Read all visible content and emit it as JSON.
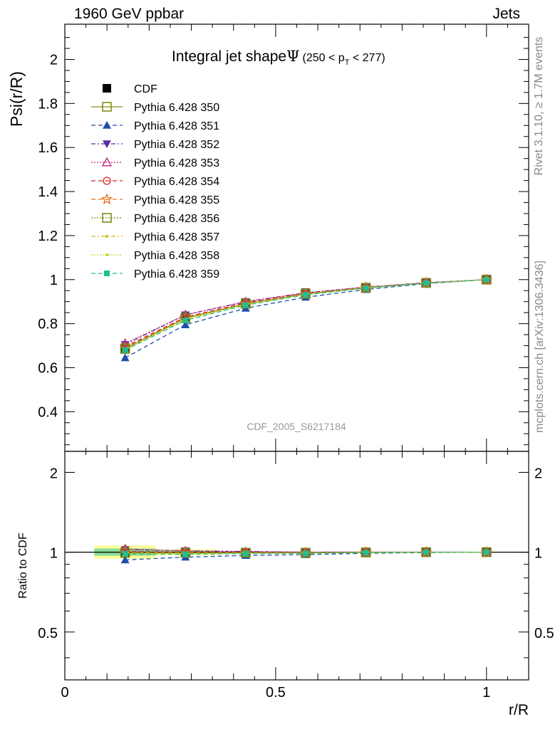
{
  "header": {
    "left": "1960 GeV ppbar",
    "right": "Jets"
  },
  "side_texts": {
    "rivet": "Rivet 3.1.10, ≥ 1.7M events",
    "mcplots": "mcplots.cern.ch [arXiv:1306.3436]"
  },
  "watermark": "CDF_2005_S6217184",
  "chart_data": [
    {
      "type": "line",
      "panel": "main",
      "title": "Integral jet shapeΨ (250 < p_T < 277)",
      "title_main": "Integral jet shape",
      "title_symbol": "Ψ",
      "title_range": "(250 < p",
      "title_sub": "T",
      "title_range_end": " < 277)",
      "ylabel": "Psi(r/R)",
      "xlabel": "r/R",
      "xlim": [
        0,
        1.1
      ],
      "ylim": [
        0.22,
        2.16
      ],
      "y_ticks": [
        0.4,
        0.6,
        0.8,
        1,
        1.2,
        1.4,
        1.6,
        1.8,
        2
      ],
      "y_tick_labels": [
        "0.4",
        "0.6",
        "0.8",
        "1",
        "1.2",
        "1.4",
        "1.6",
        "1.8",
        "2"
      ],
      "x": [
        0.143,
        0.286,
        0.429,
        0.571,
        0.714,
        0.857,
        1.0
      ],
      "legend_position": "top-left",
      "series": [
        {
          "name": "CDF",
          "color": "#000000",
          "marker": "filled-square",
          "dash": "none",
          "values": [
            0.69,
            0.83,
            0.895,
            0.94,
            0.965,
            0.985,
            1.0
          ]
        },
        {
          "name": "Pythia 6.428 350",
          "color": "#8a8a1e",
          "marker": "open-square",
          "dash": "solid",
          "values": [
            0.685,
            0.825,
            0.89,
            0.935,
            0.963,
            0.985,
            1.0
          ]
        },
        {
          "name": "Pythia 6.428 351",
          "color": "#1f4fa8",
          "marker": "filled-triangle-up",
          "dash": "6,4",
          "values": [
            0.645,
            0.795,
            0.87,
            0.92,
            0.955,
            0.982,
            1.0
          ]
        },
        {
          "name": "Pythia 6.428 352",
          "color": "#5b2ca0",
          "marker": "filled-triangle-down",
          "dash": "6,3,2,3",
          "values": [
            0.705,
            0.84,
            0.9,
            0.94,
            0.966,
            0.986,
            1.0
          ]
        },
        {
          "name": "Pythia 6.428 353",
          "color": "#c0257a",
          "marker": "open-triangle-up",
          "dash": "2,2",
          "values": [
            0.71,
            0.84,
            0.9,
            0.94,
            0.966,
            0.986,
            1.0
          ]
        },
        {
          "name": "Pythia 6.428 354",
          "color": "#d42020",
          "marker": "open-circle",
          "dash": "6,4",
          "values": [
            0.695,
            0.83,
            0.895,
            0.937,
            0.964,
            0.985,
            1.0
          ]
        },
        {
          "name": "Pythia 6.428 355",
          "color": "#e8701c",
          "marker": "open-star",
          "dash": "6,4",
          "values": [
            0.69,
            0.827,
            0.892,
            0.936,
            0.964,
            0.985,
            1.0
          ]
        },
        {
          "name": "Pythia 6.428 356",
          "color": "#7a8a1c",
          "marker": "open-square",
          "dash": "2,2",
          "values": [
            0.688,
            0.826,
            0.891,
            0.935,
            0.963,
            0.985,
            1.0
          ]
        },
        {
          "name": "Pythia 6.428 357",
          "color": "#d8b820",
          "marker": "small-dot",
          "dash": "6,3,2,3",
          "values": [
            0.685,
            0.822,
            0.888,
            0.933,
            0.962,
            0.984,
            1.0
          ]
        },
        {
          "name": "Pythia 6.428 358",
          "color": "#b8d820",
          "marker": "small-dot",
          "dash": "2,2",
          "values": [
            0.682,
            0.818,
            0.886,
            0.932,
            0.962,
            0.984,
            1.0
          ]
        },
        {
          "name": "Pythia 6.428 359",
          "color": "#20c090",
          "marker": "filled-square-small",
          "dash": "6,4",
          "values": [
            0.68,
            0.815,
            0.884,
            0.931,
            0.961,
            0.984,
            1.0
          ]
        }
      ]
    },
    {
      "type": "line",
      "panel": "ratio",
      "ylabel": "Ratio to CDF",
      "xlabel": "r/R",
      "xlim": [
        0,
        1.1
      ],
      "ylim": [
        0.33,
        2.4
      ],
      "log_y": true,
      "y_ticks": [
        0.5,
        1,
        2
      ],
      "y_tick_labels": [
        "0.5",
        "1",
        "2"
      ],
      "x_ticks": [
        0,
        0.5,
        1
      ],
      "x_tick_labels": [
        "0",
        "0.5",
        "1"
      ],
      "x": [
        0.143,
        0.286,
        0.429,
        0.571,
        0.714,
        0.857,
        1.0
      ],
      "bands": [
        {
          "x0": 0.07,
          "x1": 0.215,
          "lo": 0.945,
          "hi": 1.06,
          "color": "#ffff99"
        },
        {
          "x0": 0.07,
          "x1": 0.215,
          "lo": 0.97,
          "hi": 1.032,
          "color": "#88dd99"
        },
        {
          "x0": 0.215,
          "x1": 0.36,
          "lo": 0.975,
          "hi": 1.025,
          "color": "#ffff99"
        },
        {
          "x0": 0.215,
          "x1": 0.36,
          "lo": 0.988,
          "hi": 1.012,
          "color": "#88dd99"
        }
      ],
      "series_ratio": [
        [
          1.0,
          1.0,
          1.0,
          1.0,
          1.0,
          1.0,
          1.0
        ],
        [
          0.993,
          0.994,
          0.994,
          0.995,
          0.998,
          1.0,
          1.0
        ],
        [
          0.935,
          0.958,
          0.972,
          0.979,
          0.99,
          0.997,
          1.0
        ],
        [
          1.022,
          1.012,
          1.006,
          1.0,
          1.001,
          1.001,
          1.0
        ],
        [
          1.029,
          1.012,
          1.006,
          1.0,
          1.001,
          1.001,
          1.0
        ],
        [
          1.007,
          1.0,
          1.0,
          0.997,
          0.999,
          1.0,
          1.0
        ],
        [
          1.0,
          0.996,
          0.997,
          0.996,
          0.999,
          1.0,
          1.0
        ],
        [
          0.997,
          0.995,
          0.996,
          0.995,
          0.998,
          1.0,
          1.0
        ],
        [
          0.993,
          0.99,
          0.992,
          0.993,
          0.997,
          0.999,
          1.0
        ],
        [
          0.988,
          0.986,
          0.99,
          0.991,
          0.997,
          0.999,
          1.0
        ],
        [
          0.986,
          0.982,
          0.988,
          0.99,
          0.996,
          0.999,
          1.0
        ]
      ]
    }
  ]
}
